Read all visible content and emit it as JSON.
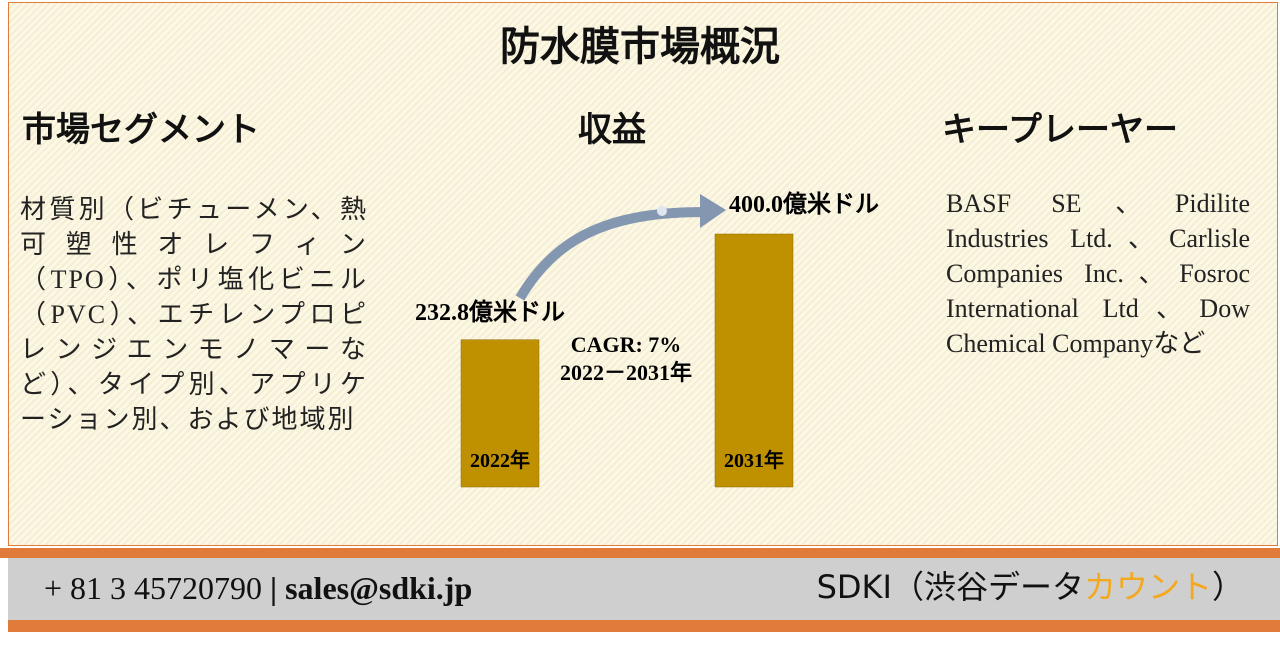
{
  "title": "防水膜市場概況",
  "segments": {
    "heading": "市場セグメント",
    "text": "材質別（ビチューメン、熱可塑性オレフィン（TPO）、ポリ塩化ビニル（PVC）、エチレンプロピレンジエンモノマーなど）、タイプ別、アプリケーション別、および地域別"
  },
  "revenue": {
    "heading": "収益",
    "bars": [
      {
        "label": "2022年",
        "value": 232.8,
        "value_label": "232.8億米ドル"
      },
      {
        "label": "2031年",
        "value": 400.0,
        "value_label": "400.0億米ドル"
      }
    ],
    "color": "#bf9000",
    "cagr": "CAGR: 7%",
    "period": "2022－2031年"
  },
  "players": {
    "heading": "キープレーヤー",
    "text": "BASF SE、Pidilite Industries Ltd.、Carlisle Companies Inc.、Fosroc International Ltd、Dow Chemical Companyなど"
  },
  "footer": {
    "phone": "+ 81 3 45720790",
    "separator": "|",
    "email": "sales@sdki.jp",
    "brand": "SDKI（渋谷データ",
    "brand_highlight": "カウント",
    "brand_end": "）"
  }
}
